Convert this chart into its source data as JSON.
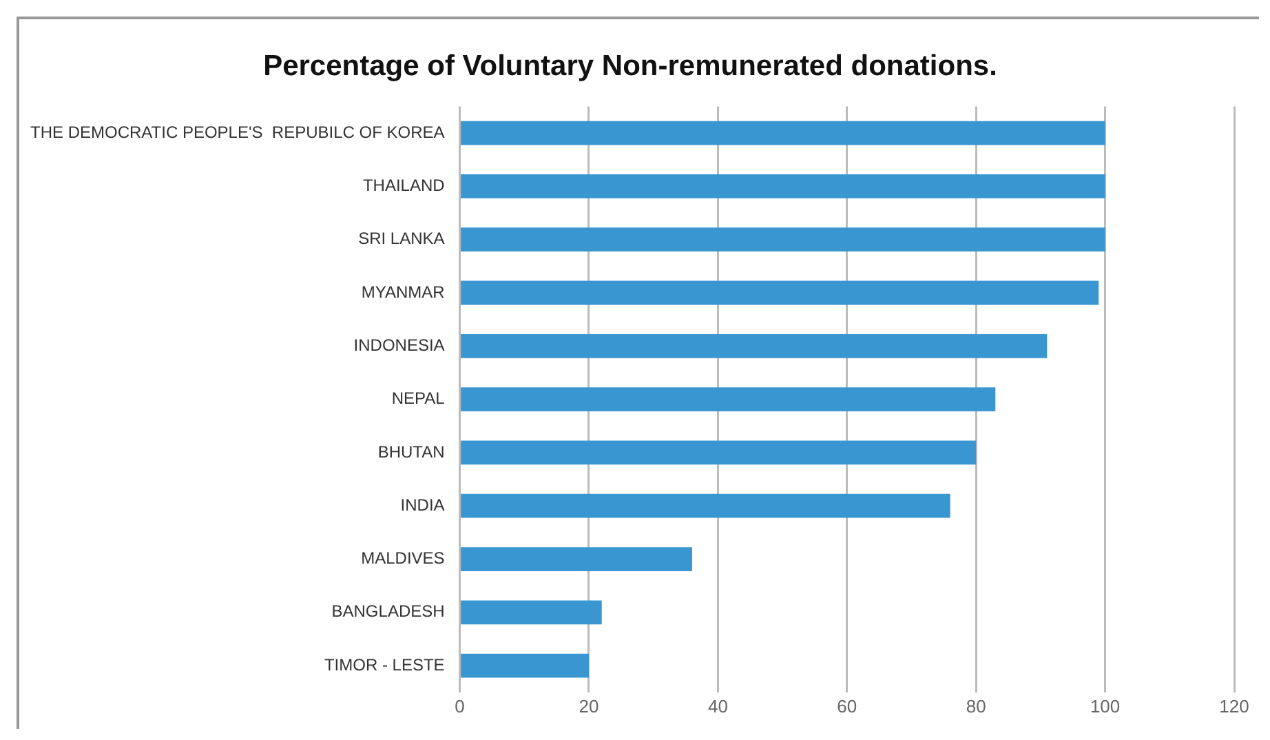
{
  "chart_data": {
    "type": "bar",
    "orientation": "horizontal",
    "title": "Percentage of Voluntary Non-remunerated donations.",
    "categories": [
      "THE DEMOCRATIC PEOPLE'S  REPUBILC OF KOREA",
      "THAILAND",
      "SRI LANKA",
      "MYANMAR",
      "INDONESIA",
      "NEPAL",
      "BHUTAN",
      "INDIA",
      "MALDIVES",
      "BANGLADESH",
      "TIMOR - LESTE"
    ],
    "values": [
      100,
      100,
      100,
      99,
      91,
      83,
      80,
      76,
      36,
      22,
      20
    ],
    "color": "#3a96d0",
    "xlim": [
      0,
      120
    ],
    "xticks": [
      0,
      20,
      40,
      60,
      80,
      100,
      120
    ],
    "grid": "x"
  }
}
